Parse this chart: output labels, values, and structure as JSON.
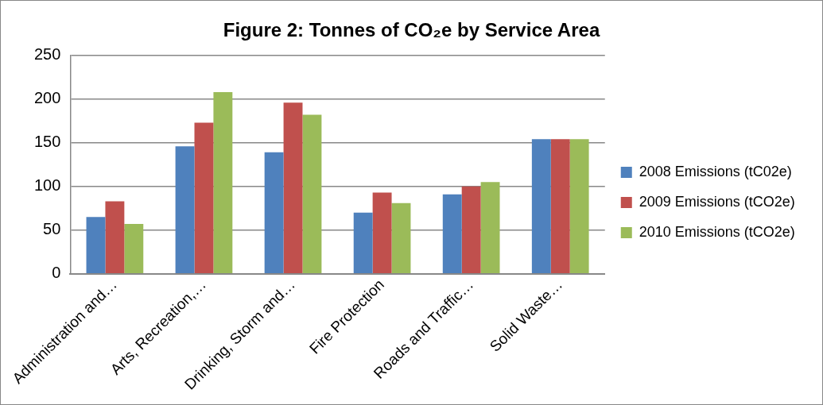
{
  "chart_data": {
    "type": "bar",
    "title": "Figure 2: Tonnes of CO₂e by Service Area",
    "categories": [
      "Administration and…",
      "Arts, Recreation,…",
      "Drinking, Storm and…",
      "Fire Protection",
      "Roads and Traffic…",
      "Solid Waste…"
    ],
    "series": [
      {
        "name": "2008 Emissions (tC02e)",
        "color": "#4f81bd",
        "values": [
          65,
          146,
          139,
          70,
          91,
          154
        ]
      },
      {
        "name": "2009 Emissions (tCO2e)",
        "color": "#c0504d",
        "values": [
          83,
          173,
          196,
          93,
          100,
          154
        ]
      },
      {
        "name": "2010 Emissions (tCO2e)",
        "color": "#9bbb59",
        "values": [
          57,
          208,
          182,
          81,
          105,
          154
        ]
      }
    ],
    "ylim": [
      0,
      250
    ],
    "yticks": [
      0,
      50,
      100,
      150,
      200,
      250
    ],
    "grid": "y",
    "legend": "right"
  }
}
